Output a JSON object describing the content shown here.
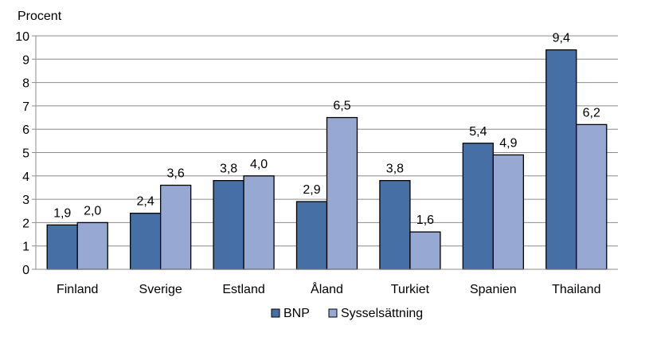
{
  "chart_data": {
    "type": "bar",
    "title": "",
    "ylabel": "Procent",
    "xlabel": "",
    "ylim": [
      0,
      10
    ],
    "yticks": [
      "0",
      "1",
      "2",
      "3",
      "4",
      "5",
      "6",
      "7",
      "8",
      "9",
      "10"
    ],
    "grid": true,
    "legend_position": "bottom",
    "categories": [
      "Finland",
      "Sverige",
      "Estland",
      "Åland",
      "Turkiet",
      "Spanien",
      "Thailand"
    ],
    "series": [
      {
        "name": "BNP",
        "color": "#4670A5",
        "values": [
          1.9,
          2.4,
          3.8,
          2.9,
          3.8,
          5.4,
          9.4
        ],
        "labels": [
          "1,9",
          "2,4",
          "3,8",
          "2,9",
          "3,8",
          "5,4",
          "9,4"
        ]
      },
      {
        "name": "Sysselsättning",
        "color": "#97A9D3",
        "values": [
          2.0,
          3.6,
          4.0,
          6.5,
          1.6,
          4.9,
          6.2
        ],
        "labels": [
          "2,0",
          "3,6",
          "4,0",
          "6,5",
          "1,6",
          "4,9",
          "6,2"
        ]
      }
    ]
  }
}
